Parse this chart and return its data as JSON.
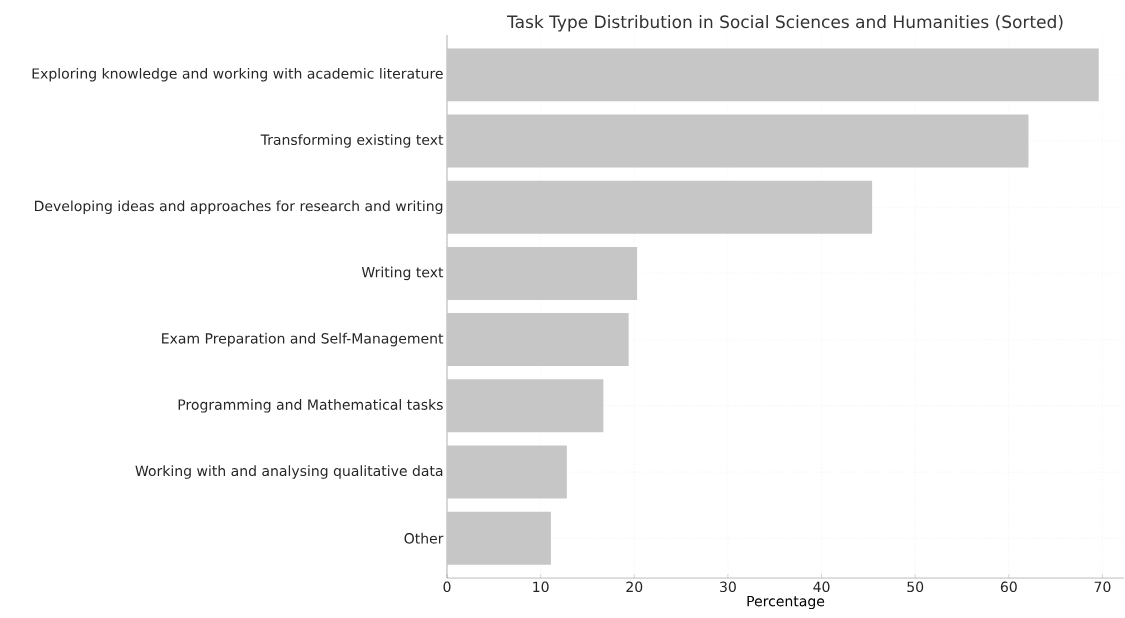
{
  "chart_data": {
    "type": "bar",
    "orientation": "horizontal",
    "title": "Task Type Distribution in Social Sciences and Humanities (Sorted)",
    "xlabel": "Percentage",
    "categories": [
      "Exploring knowledge and working with academic literature",
      "Transforming existing text",
      "Developing ideas and approaches for research and writing",
      "Writing text",
      "Exam Preparation and Self-Management",
      "Programming and Mathematical tasks",
      "Working with and analysing qualitative data",
      "Other"
    ],
    "values": [
      69.6,
      62.1,
      45.4,
      20.3,
      19.4,
      16.7,
      12.8,
      11.1
    ],
    "color": "#c6c6c6",
    "xlim": [
      0,
      72.3
    ],
    "xticks": [
      0,
      10,
      20,
      30,
      40,
      50,
      60,
      70
    ],
    "grid": true
  }
}
